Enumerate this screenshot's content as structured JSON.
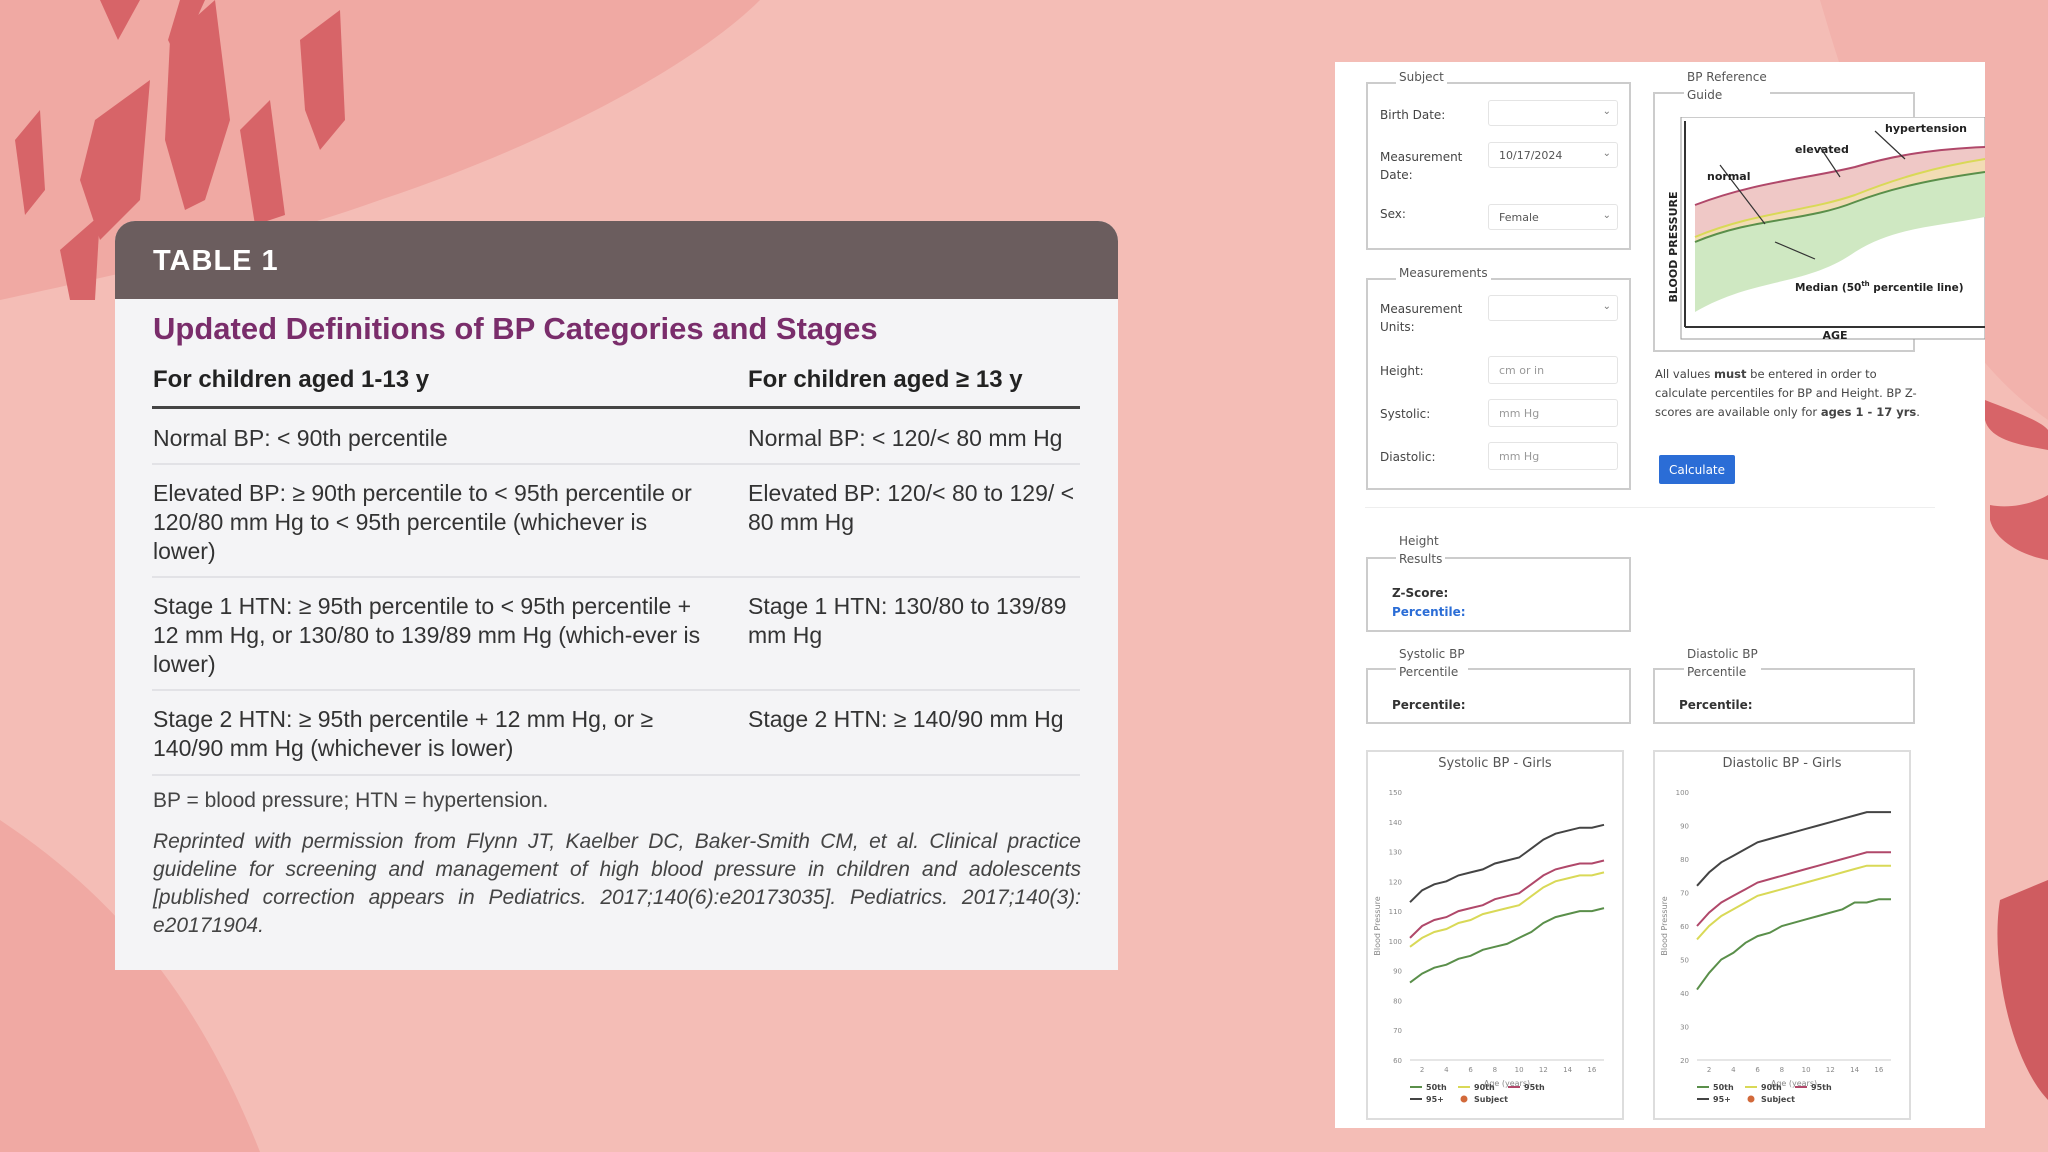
{
  "table": {
    "header": "TABLE 1",
    "title": "Updated Definitions of BP Categories and Stages",
    "col1_head": "For children aged 1-13 y",
    "col2_head": "For children aged ≥ 13 y",
    "rows": [
      {
        "c1": "Normal BP: < 90th percentile",
        "c2": "Normal BP: < 120/< 80 mm Hg"
      },
      {
        "c1": "Elevated BP: ≥ 90th percentile to < 95th percentile or 120/80 mm Hg to < 95th percentile (whichever is lower)",
        "c2": "Elevated BP: 120/< 80 to 129/ < 80 mm Hg"
      },
      {
        "c1": "Stage 1 HTN: ≥ 95th percentile to < 95th percentile + 12 mm Hg, or 130/80 to 139/89 mm Hg (which-ever is lower)",
        "c2": "Stage 1 HTN: 130/80 to 139/89 mm Hg"
      },
      {
        "c1": "Stage 2 HTN: ≥ 95th percentile + 12 mm Hg, or ≥ 140/90 mm Hg (whichever is lower)",
        "c2": "Stage 2 HTN: ≥ 140/90 mm Hg"
      }
    ],
    "footnote": "BP = blood pressure; HTN = hypertension.",
    "citation": "Reprinted with permission from Flynn JT, Kaelber DC, Baker-Smith CM, et al. Clinical practice guideline for screening and management of high blood pressure in children and adolescents [published correction appears in Pediatrics. 2017;140(6):e20173035]. Pediatrics. 2017;140(3): e20171904."
  },
  "calculator": {
    "subject": {
      "legend": "Subject",
      "birth_date_label": "Birth Date:",
      "birth_date_value": "",
      "measurement_date_label_1": "Measurement",
      "measurement_date_label_2": "Date:",
      "measurement_date_value": "10/17/2024",
      "sex_label": "Sex:",
      "sex_value": "Female"
    },
    "measurements": {
      "legend": "Measurements",
      "units_label_1": "Measurement",
      "units_label_2": "Units:",
      "units_value": "",
      "height_label": "Height:",
      "height_placeholder": "cm or in",
      "systolic_label": "Systolic:",
      "systolic_placeholder": "mm Hg",
      "diastolic_label": "Diastolic:",
      "diastolic_placeholder": "mm Hg"
    },
    "reference": {
      "legend_1": "BP Reference",
      "legend_2": "Guide",
      "hypertension": "hypertension",
      "elevated": "elevated",
      "normal": "normal",
      "y_axis": "BLOOD PRESSURE",
      "median_label": "Median (50",
      "median_sup": "th",
      "median_label_end": " percentile line)",
      "x_axis": "AGE"
    },
    "note": {
      "p1": "All values ",
      "p1_bold": "must",
      "p2": " be entered in order to calculate percentiles for BP and Height. BP Z-scores are available only for ",
      "p2_bold": "ages 1 - 17 yrs",
      "p3": "."
    },
    "calculate_label": "Calculate",
    "height_results": {
      "legend_1": "Height",
      "legend_2": "Results",
      "zscore_label": "Z-Score:",
      "percentile_label": "Percentile:"
    },
    "systolic_results": {
      "legend_1": "Systolic BP",
      "legend_2": "Percentile",
      "percentile_label": "Percentile:"
    },
    "diastolic_results": {
      "legend_1": "Diastolic BP",
      "legend_2": "Percentile",
      "percentile_label": "Percentile:"
    },
    "colors": {
      "p50": "#5a8f4a",
      "p90": "#d9d957",
      "p95": "#b0486a",
      "p95plus": "#444444",
      "subject": "#d2693a",
      "button": "#2b6dd6"
    }
  },
  "chart_data": [
    {
      "type": "line",
      "title": "Systolic BP - Girls",
      "xlabel": "Age (years)",
      "ylabel": "Blood Pressure",
      "xlim": [
        1,
        17
      ],
      "ylim": [
        60,
        150
      ],
      "x_ticks": [
        2,
        4,
        6,
        8,
        10,
        12,
        14,
        16
      ],
      "y_ticks": [
        60,
        70,
        80,
        90,
        100,
        110,
        120,
        130,
        140,
        150
      ],
      "series": [
        {
          "name": "50th",
          "color": "#5a8f4a",
          "x": [
            1,
            2,
            3,
            4,
            5,
            6,
            7,
            8,
            9,
            10,
            11,
            12,
            13,
            14,
            15,
            16,
            17
          ],
          "values": [
            86,
            89,
            91,
            92,
            94,
            95,
            97,
            98,
            99,
            101,
            103,
            106,
            108,
            109,
            110,
            110,
            111
          ]
        },
        {
          "name": "90th",
          "color": "#d9d957",
          "x": [
            1,
            2,
            3,
            4,
            5,
            6,
            7,
            8,
            9,
            10,
            11,
            12,
            13,
            14,
            15,
            16,
            17
          ],
          "values": [
            98,
            101,
            103,
            104,
            106,
            107,
            109,
            110,
            111,
            112,
            115,
            118,
            120,
            121,
            122,
            122,
            123
          ]
        },
        {
          "name": "95th",
          "color": "#b0486a",
          "x": [
            1,
            2,
            3,
            4,
            5,
            6,
            7,
            8,
            9,
            10,
            11,
            12,
            13,
            14,
            15,
            16,
            17
          ],
          "values": [
            101,
            105,
            107,
            108,
            110,
            111,
            112,
            114,
            115,
            116,
            119,
            122,
            124,
            125,
            126,
            126,
            127
          ]
        },
        {
          "name": "95+",
          "color": "#444444",
          "x": [
            1,
            2,
            3,
            4,
            5,
            6,
            7,
            8,
            9,
            10,
            11,
            12,
            13,
            14,
            15,
            16,
            17
          ],
          "values": [
            113,
            117,
            119,
            120,
            122,
            123,
            124,
            126,
            127,
            128,
            131,
            134,
            136,
            137,
            138,
            138,
            139
          ]
        },
        {
          "name": "Subject",
          "color": "#d2693a",
          "x": [],
          "values": []
        }
      ]
    },
    {
      "type": "line",
      "title": "Diastolic BP - Girls",
      "xlabel": "Age (years)",
      "ylabel": "Blood Pressure",
      "xlim": [
        1,
        17
      ],
      "ylim": [
        20,
        100
      ],
      "x_ticks": [
        2,
        4,
        6,
        8,
        10,
        12,
        14,
        16
      ],
      "y_ticks": [
        20,
        30,
        40,
        50,
        60,
        70,
        80,
        90,
        100
      ],
      "series": [
        {
          "name": "50th",
          "color": "#5a8f4a",
          "x": [
            1,
            2,
            3,
            4,
            5,
            6,
            7,
            8,
            9,
            10,
            11,
            12,
            13,
            14,
            15,
            16,
            17
          ],
          "values": [
            41,
            46,
            50,
            52,
            55,
            57,
            58,
            60,
            61,
            62,
            63,
            64,
            65,
            67,
            67,
            68,
            68
          ]
        },
        {
          "name": "90th",
          "color": "#d9d957",
          "x": [
            1,
            2,
            3,
            4,
            5,
            6,
            7,
            8,
            9,
            10,
            11,
            12,
            13,
            14,
            15,
            16,
            17
          ],
          "values": [
            56,
            60,
            63,
            65,
            67,
            69,
            70,
            71,
            72,
            73,
            74,
            75,
            76,
            77,
            78,
            78,
            78
          ]
        },
        {
          "name": "95th",
          "color": "#b0486a",
          "x": [
            1,
            2,
            3,
            4,
            5,
            6,
            7,
            8,
            9,
            10,
            11,
            12,
            13,
            14,
            15,
            16,
            17
          ],
          "values": [
            60,
            64,
            67,
            69,
            71,
            73,
            74,
            75,
            76,
            77,
            78,
            79,
            80,
            81,
            82,
            82,
            82
          ]
        },
        {
          "name": "95+",
          "color": "#444444",
          "x": [
            1,
            2,
            3,
            4,
            5,
            6,
            7,
            8,
            9,
            10,
            11,
            12,
            13,
            14,
            15,
            16,
            17
          ],
          "values": [
            72,
            76,
            79,
            81,
            83,
            85,
            86,
            87,
            88,
            89,
            90,
            91,
            92,
            93,
            94,
            94,
            94
          ]
        },
        {
          "name": "Subject",
          "color": "#d2693a",
          "x": [],
          "values": []
        }
      ]
    }
  ]
}
